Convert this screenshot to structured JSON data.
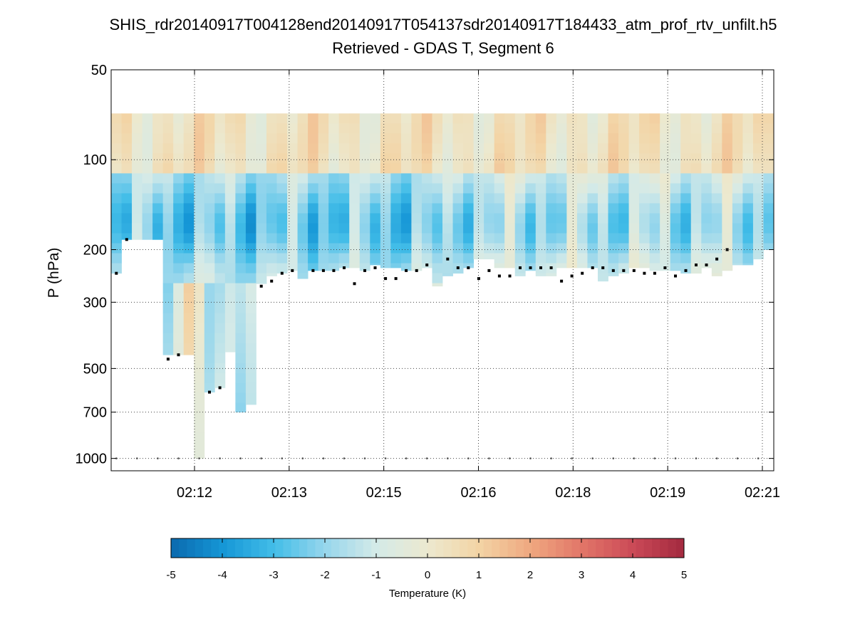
{
  "chart_data": {
    "type": "heatmap",
    "title": "SHIS_rdr20140917T004128end20140917T054137sdr20140917T184433_atm_prof_rtv_unfilt.h5",
    "subtitle": "Retrieved - GDAS T, Segment 6",
    "ylabel": "P (hPa)",
    "xlabel": "",
    "y_scale": "log",
    "y_reversed": true,
    "ylim": [
      50,
      1100
    ],
    "y_ticks": [
      50,
      100,
      200,
      300,
      500,
      700,
      1000
    ],
    "y_tick_labels": [
      "50",
      "100",
      "200",
      "300",
      "500",
      "700",
      "1000"
    ],
    "x_tick_labels": [
      "02:12",
      "02:13",
      "02:15",
      "02:16",
      "02:18",
      "02:19",
      "02:21"
    ],
    "grid": true,
    "colorbar": {
      "label": "Temperature (K)",
      "range": [
        -5,
        5
      ],
      "ticks": [
        "-5",
        "-4",
        "-3",
        "-2",
        "-1",
        "0",
        "1",
        "2",
        "3",
        "4",
        "5"
      ],
      "low_color": "#0b6aae",
      "mid_color": "#ece9cf",
      "high_color": "#a3293f"
    },
    "num_profiles": 64,
    "top_pressure_hpa": 70,
    "surface_pressure_hpa": 1000,
    "valid_bottom_hpa": [
      240,
      185,
      185,
      185,
      185,
      450,
      450,
      450,
      1000,
      600,
      580,
      440,
      700,
      660,
      260,
      245,
      240,
      235,
      250,
      235,
      235,
      235,
      230,
      230,
      235,
      225,
      230,
      230,
      235,
      235,
      230,
      265,
      245,
      240,
      230,
      215,
      215,
      230,
      230,
      245,
      235,
      245,
      245,
      230,
      230,
      230,
      230,
      255,
      245,
      240,
      230,
      230,
      235,
      235,
      235,
      240,
      240,
      230,
      245,
      235,
      225,
      225,
      215,
      200
    ],
    "marker_pressure_hpa": [
      240,
      185,
      null,
      null,
      null,
      465,
      450,
      null,
      null,
      600,
      580,
      null,
      null,
      null,
      265,
      255,
      240,
      235,
      null,
      235,
      235,
      235,
      230,
      260,
      235,
      230,
      250,
      250,
      235,
      235,
      225,
      null,
      215,
      230,
      230,
      250,
      235,
      245,
      245,
      230,
      230,
      230,
      230,
      255,
      245,
      240,
      230,
      230,
      235,
      235,
      235,
      240,
      240,
      230,
      245,
      235,
      225,
      225,
      215,
      200,
      null,
      null,
      null,
      null
    ],
    "anomaly_field_K": "Retrieved minus GDAS temperature; negative (blue, down to about -4.5 K) near 100-250 hPa, near zero to +1.5 K (tan) near 70-110 hPa and in the lower troposphere around 02:12"
  }
}
